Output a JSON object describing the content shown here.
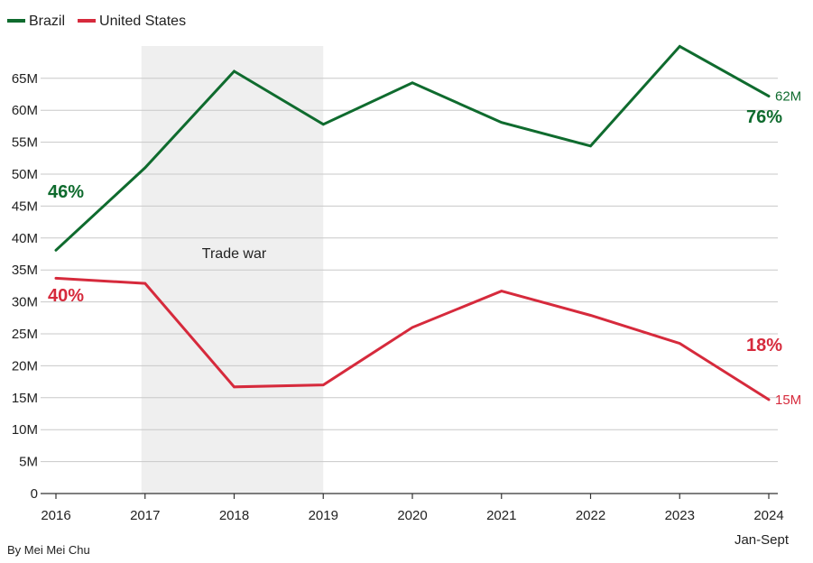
{
  "chart_data": {
    "type": "line",
    "title": "",
    "xlabel": "",
    "ylabel": "",
    "x": [
      "2016",
      "2017",
      "2018",
      "2019",
      "2020",
      "2021",
      "2022",
      "2023",
      "2024"
    ],
    "x_sublabel_last": "Jan-Sept",
    "ylim": [
      0,
      70
    ],
    "yticks": [
      0,
      5,
      10,
      15,
      20,
      25,
      30,
      35,
      40,
      45,
      50,
      55,
      60,
      65
    ],
    "ytick_labels": [
      "0",
      "5M",
      "10M",
      "15M",
      "20M",
      "25M",
      "30M",
      "35M",
      "40M",
      "45M",
      "50M",
      "55M",
      "60M",
      "65M"
    ],
    "grid": true,
    "legend_position": "top-left",
    "series": [
      {
        "name": "Brazil",
        "color": "#0f6b2e",
        "values": [
          38.1,
          51.0,
          66.1,
          57.8,
          64.3,
          58.1,
          54.4,
          70.0,
          62.2
        ],
        "start_pct": "46%",
        "end_pct": "76%",
        "end_label": "62M"
      },
      {
        "name": "United States",
        "color": "#d62a3c",
        "values": [
          33.7,
          32.9,
          16.7,
          17.0,
          26.0,
          31.7,
          27.9,
          23.5,
          14.7
        ],
        "start_pct": "40%",
        "end_pct": "18%",
        "end_label": "15M"
      }
    ],
    "shaded_region": {
      "from": "2017",
      "to": "2019",
      "label": "Trade war",
      "color": "#efefef"
    }
  },
  "credit": "By Mei Mei Chu"
}
